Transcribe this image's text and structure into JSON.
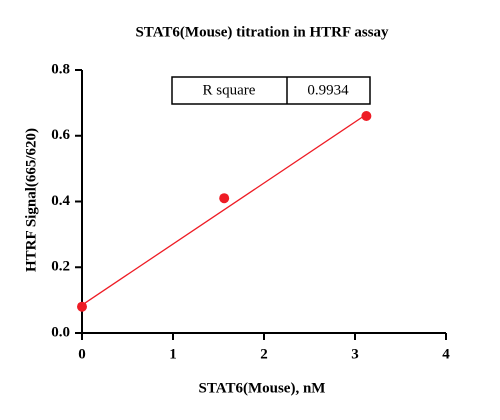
{
  "chart_data": {
    "type": "scatter",
    "title": "STAT6(Mouse) titration in HTRF assay",
    "x_label": "STAT6(Mouse), nM",
    "y_label": "HTRF Signal(665/620)",
    "x": [
      0,
      1.5625,
      3.125
    ],
    "values": [
      0.08,
      0.41,
      0.66
    ],
    "color": "#ee1c25",
    "fit_line": {
      "x": [
        0,
        3.125
      ],
      "values": [
        0.085,
        0.665
      ],
      "color": "#ee1c25"
    },
    "annotation_table": {
      "label": "R square",
      "value": "0.9934"
    },
    "xlim": [
      0,
      4
    ],
    "xticks": [
      0,
      1,
      2,
      3,
      4
    ],
    "ylim": [
      0,
      0.8
    ],
    "yticks": [
      {
        "value": 0,
        "label": "0.0"
      },
      0.2,
      0.4,
      0.6,
      0.8
    ],
    "grid": false
  }
}
